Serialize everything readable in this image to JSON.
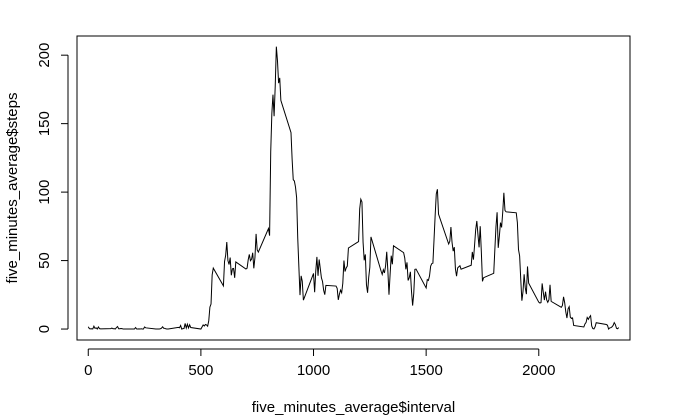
{
  "chart_data": {
    "type": "line",
    "xlabel": "five_minutes_average$interval",
    "ylabel": "five_minutes_average$steps",
    "xlim": [
      -50,
      2405
    ],
    "ylim": [
      -8,
      214
    ],
    "xticks": [
      0,
      500,
      1000,
      1500,
      2000
    ],
    "yticks": [
      0,
      50,
      100,
      150,
      200
    ],
    "xtick_labels": [
      "0",
      "500",
      "1000",
      "1500",
      "2000"
    ],
    "ytick_labels": [
      "0",
      "50",
      "100",
      "150",
      "200"
    ],
    "series": [
      {
        "color": "#000000",
        "points": [
          [
            0,
            1.7
          ],
          [
            5,
            0.3
          ],
          [
            10,
            0.1
          ],
          [
            15,
            0.2
          ],
          [
            20,
            0.1
          ],
          [
            25,
            2.1
          ],
          [
            30,
            0.5
          ],
          [
            35,
            0.9
          ],
          [
            40,
            0
          ],
          [
            45,
            1.5
          ],
          [
            50,
            0.3
          ],
          [
            55,
            0.1
          ],
          [
            100,
            0.3
          ],
          [
            105,
            0.7
          ],
          [
            110,
            0.2
          ],
          [
            115,
            0.3
          ],
          [
            120,
            0
          ],
          [
            125,
            1.1
          ],
          [
            130,
            1.8
          ],
          [
            135,
            0.2
          ],
          [
            140,
            0.2
          ],
          [
            145,
            0.4
          ],
          [
            150,
            0.3
          ],
          [
            155,
            0
          ],
          [
            200,
            0
          ],
          [
            205,
            0
          ],
          [
            210,
            1.1
          ],
          [
            215,
            0
          ],
          [
            220,
            0
          ],
          [
            225,
            0.1
          ],
          [
            230,
            0
          ],
          [
            235,
            0.2
          ],
          [
            240,
            0
          ],
          [
            245,
            0
          ],
          [
            250,
            1.5
          ],
          [
            255,
            0.9
          ],
          [
            300,
            0
          ],
          [
            305,
            0
          ],
          [
            310,
            0
          ],
          [
            315,
            0
          ],
          [
            320,
            0.2
          ],
          [
            325,
            0.6
          ],
          [
            330,
            1.6
          ],
          [
            335,
            0.6
          ],
          [
            340,
            0.5
          ],
          [
            345,
            0.1
          ],
          [
            350,
            0
          ],
          [
            355,
            0
          ],
          [
            400,
            1.2
          ],
          [
            405,
            0.9
          ],
          [
            410,
            2.6
          ],
          [
            415,
            0
          ],
          [
            420,
            0.3
          ],
          [
            425,
            0.4
          ],
          [
            430,
            4.1
          ],
          [
            435,
            0.7
          ],
          [
            440,
            3.5
          ],
          [
            445,
            0.8
          ],
          [
            450,
            3.1
          ],
          [
            455,
            1.1
          ],
          [
            500,
            0
          ],
          [
            505,
            1.5
          ],
          [
            510,
            3.0
          ],
          [
            515,
            2.2
          ],
          [
            520,
            3.3
          ],
          [
            525,
            3.0
          ],
          [
            530,
            2.1
          ],
          [
            535,
            6.1
          ],
          [
            540,
            16.0
          ],
          [
            545,
            18.3
          ],
          [
            550,
            39.5
          ],
          [
            555,
            44.5
          ],
          [
            600,
            31.5
          ],
          [
            605,
            49.3
          ],
          [
            610,
            53.8
          ],
          [
            615,
            63.5
          ],
          [
            620,
            50.0
          ],
          [
            625,
            47.1
          ],
          [
            630,
            52.2
          ],
          [
            635,
            39.3
          ],
          [
            640,
            44.0
          ],
          [
            645,
            44.2
          ],
          [
            650,
            37.4
          ],
          [
            655,
            49.0
          ],
          [
            700,
            43.8
          ],
          [
            705,
            44.4
          ],
          [
            710,
            50.5
          ],
          [
            715,
            54.5
          ],
          [
            720,
            49.9
          ],
          [
            725,
            51.0
          ],
          [
            730,
            55.7
          ],
          [
            735,
            44.3
          ],
          [
            740,
            52.3
          ],
          [
            745,
            69.5
          ],
          [
            750,
            57.8
          ],
          [
            755,
            56.2
          ],
          [
            800,
            73.4
          ],
          [
            805,
            68.2
          ],
          [
            810,
            129.4
          ],
          [
            815,
            157.5
          ],
          [
            820,
            171.2
          ],
          [
            825,
            155.4
          ],
          [
            830,
            177.3
          ],
          [
            835,
            206.2
          ],
          [
            840,
            195.9
          ],
          [
            845,
            179.6
          ],
          [
            850,
            183.4
          ],
          [
            855,
            167.0
          ],
          [
            900,
            143.5
          ],
          [
            905,
            124.0
          ],
          [
            910,
            109.1
          ],
          [
            915,
            108.1
          ],
          [
            920,
            103.7
          ],
          [
            925,
            95.9
          ],
          [
            930,
            66.2
          ],
          [
            935,
            45.2
          ],
          [
            940,
            24.8
          ],
          [
            945,
            38.8
          ],
          [
            950,
            34.9
          ],
          [
            955,
            21.1
          ],
          [
            1000,
            40.6
          ],
          [
            1005,
            26.9
          ],
          [
            1010,
            42.4
          ],
          [
            1015,
            52.7
          ],
          [
            1020,
            38.9
          ],
          [
            1025,
            50.8
          ],
          [
            1030,
            44.3
          ],
          [
            1035,
            37.4
          ],
          [
            1040,
            34.7
          ],
          [
            1045,
            28.3
          ],
          [
            1050,
            25.1
          ],
          [
            1055,
            31.9
          ],
          [
            1100,
            31.4
          ],
          [
            1105,
            29.7
          ],
          [
            1110,
            21.3
          ],
          [
            1115,
            25.5
          ],
          [
            1120,
            28.4
          ],
          [
            1125,
            26.5
          ],
          [
            1130,
            33.4
          ],
          [
            1135,
            50.0
          ],
          [
            1140,
            42.0
          ],
          [
            1145,
            44.6
          ],
          [
            1150,
            46.0
          ],
          [
            1155,
            59.2
          ],
          [
            1200,
            63.9
          ],
          [
            1205,
            87.7
          ],
          [
            1210,
            94.8
          ],
          [
            1215,
            92.8
          ],
          [
            1220,
            63.4
          ],
          [
            1225,
            50.2
          ],
          [
            1230,
            54.5
          ],
          [
            1235,
            32.4
          ],
          [
            1240,
            26.5
          ],
          [
            1245,
            37.7
          ],
          [
            1250,
            45.1
          ],
          [
            1255,
            67.3
          ],
          [
            1300,
            42.3
          ],
          [
            1305,
            39.9
          ],
          [
            1310,
            43.3
          ],
          [
            1315,
            41.0
          ],
          [
            1320,
            46.2
          ],
          [
            1325,
            56.4
          ],
          [
            1330,
            42.8
          ],
          [
            1335,
            25.1
          ],
          [
            1340,
            39.9
          ],
          [
            1345,
            53.6
          ],
          [
            1350,
            47.3
          ],
          [
            1355,
            60.8
          ],
          [
            1400,
            55.8
          ],
          [
            1405,
            51.9
          ],
          [
            1410,
            43.6
          ],
          [
            1415,
            48.7
          ],
          [
            1420,
            35.5
          ],
          [
            1425,
            37.5
          ],
          [
            1430,
            41.8
          ],
          [
            1435,
            27.5
          ],
          [
            1440,
            17.1
          ],
          [
            1445,
            26.1
          ],
          [
            1450,
            43.6
          ],
          [
            1455,
            43.8
          ],
          [
            1500,
            30.0
          ],
          [
            1505,
            36.1
          ],
          [
            1510,
            35.5
          ],
          [
            1515,
            38.8
          ],
          [
            1520,
            45.9
          ],
          [
            1525,
            47.8
          ],
          [
            1530,
            48.1
          ],
          [
            1535,
            65.3
          ],
          [
            1540,
            82.9
          ],
          [
            1545,
            98.7
          ],
          [
            1550,
            102.1
          ],
          [
            1555,
            83.9
          ],
          [
            1600,
            62.1
          ],
          [
            1605,
            64.1
          ],
          [
            1610,
            74.5
          ],
          [
            1615,
            63.2
          ],
          [
            1620,
            56.9
          ],
          [
            1625,
            59.8
          ],
          [
            1630,
            43.9
          ],
          [
            1635,
            38.6
          ],
          [
            1640,
            44.7
          ],
          [
            1645,
            45.5
          ],
          [
            1650,
            46.2
          ],
          [
            1655,
            43.7
          ],
          [
            1700,
            46.6
          ],
          [
            1705,
            56.3
          ],
          [
            1710,
            50.7
          ],
          [
            1715,
            61.2
          ],
          [
            1720,
            72.7
          ],
          [
            1725,
            78.9
          ],
          [
            1730,
            68.9
          ],
          [
            1735,
            59.7
          ],
          [
            1740,
            75.1
          ],
          [
            1745,
            56.5
          ],
          [
            1750,
            34.8
          ],
          [
            1755,
            37.5
          ],
          [
            1800,
            40.7
          ],
          [
            1805,
            58.0
          ],
          [
            1810,
            74.7
          ],
          [
            1815,
            85.3
          ],
          [
            1820,
            59.3
          ],
          [
            1825,
            67.8
          ],
          [
            1830,
            77.7
          ],
          [
            1835,
            74.2
          ],
          [
            1840,
            85.3
          ],
          [
            1845,
            99.5
          ],
          [
            1850,
            86.6
          ],
          [
            1855,
            85.6
          ],
          [
            1900,
            84.9
          ],
          [
            1905,
            77.8
          ],
          [
            1910,
            58.0
          ],
          [
            1915,
            53.4
          ],
          [
            1920,
            36.3
          ],
          [
            1925,
            20.7
          ],
          [
            1930,
            27.4
          ],
          [
            1935,
            40.0
          ],
          [
            1940,
            30.2
          ],
          [
            1945,
            25.5
          ],
          [
            1950,
            45.7
          ],
          [
            1955,
            33.5
          ],
          [
            2000,
            19.6
          ],
          [
            2005,
            19.0
          ],
          [
            2010,
            19.3
          ],
          [
            2015,
            33.3
          ],
          [
            2020,
            26.8
          ],
          [
            2025,
            21.2
          ],
          [
            2030,
            27.3
          ],
          [
            2035,
            21.3
          ],
          [
            2040,
            19.5
          ],
          [
            2045,
            21.3
          ],
          [
            2050,
            32.3
          ],
          [
            2055,
            20.2
          ],
          [
            2100,
            15.9
          ],
          [
            2105,
            17.2
          ],
          [
            2110,
            23.5
          ],
          [
            2115,
            19.2
          ],
          [
            2120,
            12.5
          ],
          [
            2125,
            8.0
          ],
          [
            2130,
            14.7
          ],
          [
            2135,
            16.3
          ],
          [
            2140,
            8.7
          ],
          [
            2145,
            7.8
          ],
          [
            2150,
            8.1
          ],
          [
            2155,
            2.6
          ],
          [
            2200,
            1.5
          ],
          [
            2205,
            3.7
          ],
          [
            2210,
            4.8
          ],
          [
            2215,
            8.5
          ],
          [
            2220,
            7.1
          ],
          [
            2225,
            8.7
          ],
          [
            2230,
            9.8
          ],
          [
            2235,
            2.2
          ],
          [
            2240,
            0.3
          ],
          [
            2245,
            0.1
          ],
          [
            2250,
            1.6
          ],
          [
            2255,
            4.6
          ],
          [
            2300,
            3.3
          ],
          [
            2305,
            2.8
          ],
          [
            2310,
            0
          ],
          [
            2315,
            0.8
          ],
          [
            2320,
            1.0
          ],
          [
            2325,
            1.6
          ],
          [
            2330,
            2.6
          ],
          [
            2335,
            4.7
          ],
          [
            2340,
            3.3
          ],
          [
            2345,
            0.6
          ],
          [
            2350,
            0.2
          ],
          [
            2355,
            1.1
          ]
        ]
      }
    ]
  }
}
